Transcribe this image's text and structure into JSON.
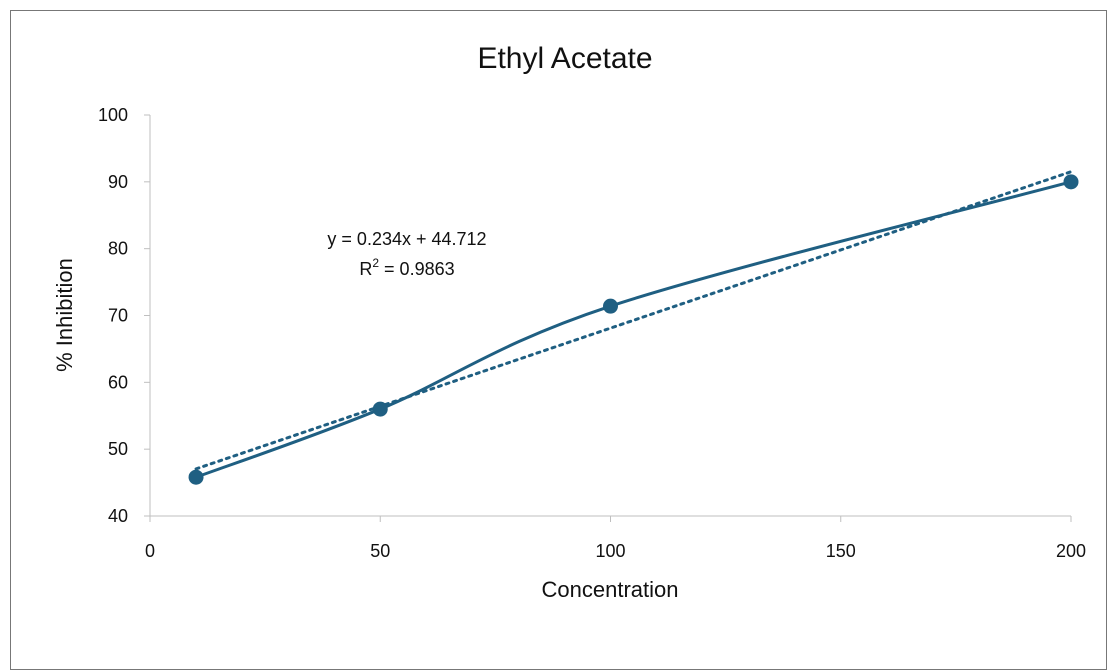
{
  "chart_data": {
    "type": "scatter",
    "title": "Ethyl Acetate",
    "xlabel": "Concentration",
    "ylabel": "% Inhibition",
    "xlim": [
      0,
      200
    ],
    "ylim": [
      40,
      100
    ],
    "x_ticks": [
      0,
      50,
      100,
      150,
      200
    ],
    "y_ticks": [
      40,
      50,
      60,
      70,
      80,
      90,
      100
    ],
    "grid": false,
    "series": [
      {
        "x": [
          10,
          50,
          100,
          200
        ],
        "y": [
          45.8,
          56.0,
          71.4,
          90.0
        ],
        "line": "smooth",
        "color": "#1f5f82"
      }
    ],
    "trendline": {
      "type": "linear",
      "slope": 0.234,
      "intercept": 44.712,
      "x_range": [
        10,
        200
      ],
      "style": "dotted",
      "color": "#1f5f82",
      "equation_label": "y = 0.234x + 44.712",
      "r2_prefix": "R",
      "r2_sup": "2",
      "r2_value": " = 0.9863"
    }
  }
}
